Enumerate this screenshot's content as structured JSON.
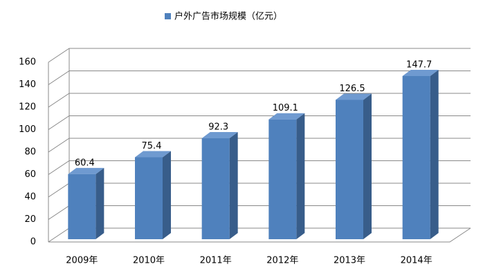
{
  "chart_data": {
    "type": "bar3d",
    "categories": [
      "2009年",
      "2010年",
      "2011年",
      "2012年",
      "2013年",
      "2014年"
    ],
    "series": [
      {
        "name": "户外广告市场规模（亿元）",
        "color": "#4f81bd",
        "values": [
          60.4,
          75.4,
          92.3,
          109.1,
          126.5,
          147.7
        ]
      }
    ],
    "ylim": [
      0,
      160
    ],
    "yticks": [
      0,
      20,
      40,
      60,
      80,
      100,
      120,
      140,
      160
    ],
    "grid": true,
    "legend": "top"
  }
}
